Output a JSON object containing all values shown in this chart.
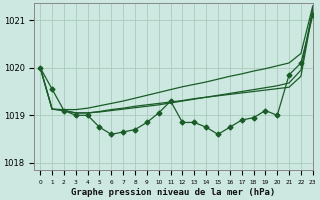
{
  "title": "Graphe pression niveau de la mer (hPa)",
  "background_color": "#cce8e0",
  "grid_color": "#aaccbb",
  "line_color": "#1a5c28",
  "xlim": [
    -0.5,
    23
  ],
  "ylim": [
    1017.85,
    1021.35
  ],
  "yticks": [
    1018,
    1019,
    1020,
    1021
  ],
  "ytick_labels": [
    "1018",
    "1019",
    "1020",
    "1021"
  ],
  "xticks": [
    0,
    1,
    2,
    3,
    4,
    5,
    6,
    7,
    8,
    9,
    10,
    11,
    12,
    13,
    14,
    15,
    16,
    17,
    18,
    19,
    20,
    21,
    22,
    23
  ],
  "main_line": [
    1020.0,
    1019.55,
    1019.1,
    1019.0,
    1019.0,
    1018.75,
    1018.6,
    1018.65,
    1018.7,
    1018.85,
    1019.05,
    1019.3,
    1018.85,
    1018.85,
    1018.75,
    1018.6,
    1018.75,
    1018.9,
    1018.95,
    1019.1,
    1019.0,
    1019.85,
    1020.1,
    1021.1
  ],
  "line_straight1": [
    1020.0,
    1019.13,
    1019.1,
    1019.05,
    1019.05,
    1019.08,
    1019.12,
    1019.15,
    1019.19,
    1019.22,
    1019.25,
    1019.28,
    1019.31,
    1019.35,
    1019.38,
    1019.41,
    1019.44,
    1019.47,
    1019.5,
    1019.53,
    1019.56,
    1019.59,
    1019.82,
    1021.2
  ],
  "line_straight2": [
    1020.0,
    1019.13,
    1019.1,
    1019.05,
    1019.05,
    1019.07,
    1019.1,
    1019.13,
    1019.16,
    1019.19,
    1019.22,
    1019.26,
    1019.3,
    1019.34,
    1019.38,
    1019.42,
    1019.46,
    1019.5,
    1019.54,
    1019.58,
    1019.62,
    1019.68,
    1019.95,
    1021.25
  ],
  "line_diag_top": [
    1020.0,
    1019.13,
    1019.12,
    1019.12,
    1019.15,
    1019.2,
    1019.25,
    1019.3,
    1019.36,
    1019.42,
    1019.48,
    1019.54,
    1019.6,
    1019.65,
    1019.7,
    1019.76,
    1019.82,
    1019.87,
    1019.93,
    1019.98,
    1020.04,
    1020.1,
    1020.3,
    1021.3
  ],
  "linewidth": 0.9,
  "marker_size": 2.5
}
